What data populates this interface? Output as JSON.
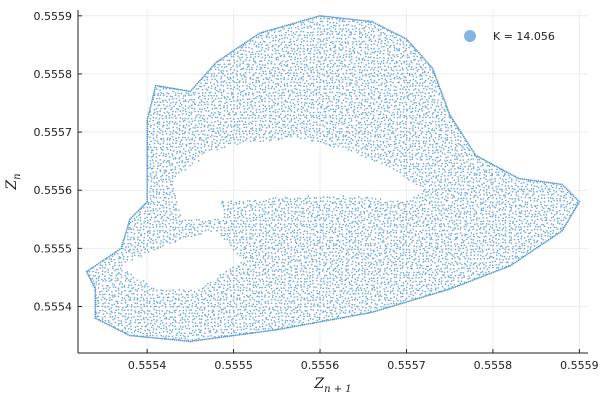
{
  "chart_data": {
    "type": "scatter",
    "title": "",
    "xlabel_main": "Z",
    "xlabel_sub": "n + 1",
    "ylabel_main": "Z",
    "ylabel_sub": "n",
    "xlim": [
      0.55532,
      0.55591
    ],
    "ylim": [
      0.55532,
      0.55591
    ],
    "xticks": [
      0.5554,
      0.5555,
      0.5556,
      0.5557,
      0.5558,
      0.5559
    ],
    "xtick_labels": [
      "0.5554",
      "0.5555",
      "0.5556",
      "0.5557",
      "0.5558",
      "0.5559"
    ],
    "yticks": [
      0.5554,
      0.5555,
      0.5556,
      0.5557,
      0.5558,
      0.5559
    ],
    "ytick_labels": [
      "0.5554",
      "0.5555",
      "0.5556",
      "0.5557",
      "0.5558",
      "0.5559"
    ],
    "grid": true,
    "legend_position": "top-right",
    "series": [
      {
        "name": "K = 14.056",
        "color": "#5b9bd5",
        "marker": "dot",
        "outline_points": [
          [
            0.55534,
            0.55543
          ],
          [
            0.55533,
            0.55546
          ],
          [
            0.55535,
            0.55548
          ],
          [
            0.55537,
            0.5555
          ],
          [
            0.55538,
            0.55555
          ],
          [
            0.5554,
            0.55558
          ],
          [
            0.5554,
            0.55572
          ],
          [
            0.55541,
            0.55578
          ],
          [
            0.55545,
            0.55577
          ],
          [
            0.55548,
            0.55582
          ],
          [
            0.55553,
            0.55587
          ],
          [
            0.5556,
            0.5559
          ],
          [
            0.55566,
            0.55589
          ],
          [
            0.5557,
            0.55586
          ],
          [
            0.55573,
            0.55581
          ],
          [
            0.55575,
            0.55573
          ],
          [
            0.55578,
            0.55566
          ],
          [
            0.55583,
            0.55562
          ],
          [
            0.55588,
            0.55561
          ],
          [
            0.5559,
            0.55558
          ],
          [
            0.55588,
            0.55553
          ],
          [
            0.55582,
            0.55547
          ],
          [
            0.55575,
            0.55543
          ],
          [
            0.55566,
            0.55539
          ],
          [
            0.55555,
            0.55536
          ],
          [
            0.55545,
            0.55534
          ],
          [
            0.55538,
            0.55535
          ],
          [
            0.55534,
            0.55538
          ]
        ],
        "holes": [
          [
            [
              0.55546,
              0.55566
            ],
            [
              0.55551,
              0.55568
            ],
            [
              0.55557,
              0.55569
            ],
            [
              0.55563,
              0.55567
            ],
            [
              0.55568,
              0.55564
            ],
            [
              0.55572,
              0.5556
            ],
            [
              0.5557,
              0.55558
            ],
            [
              0.55564,
              0.55559
            ],
            [
              0.55557,
              0.55559
            ],
            [
              0.5555,
              0.55558
            ],
            [
              0.55546,
              0.5556
            ]
          ],
          [
            [
              0.55543,
              0.55562
            ],
            [
              0.55547,
              0.55566
            ],
            [
              0.55549,
              0.55555
            ],
            [
              0.55544,
              0.55555
            ]
          ],
          [
            [
              0.55543,
              0.55551
            ],
            [
              0.55548,
              0.55553
            ],
            [
              0.55551,
              0.55548
            ],
            [
              0.55546,
              0.55543
            ],
            [
              0.55541,
              0.55543
            ],
            [
              0.55537,
              0.55547
            ]
          ]
        ]
      }
    ]
  }
}
